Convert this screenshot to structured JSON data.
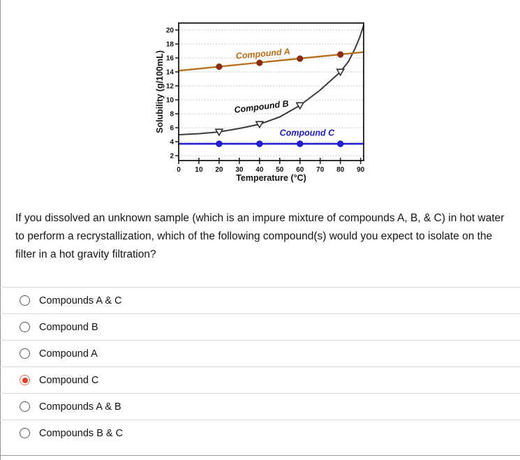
{
  "page": {
    "background": "#ffffff",
    "left_border_color": "#8f8f8f",
    "bottom_border_color": "#9a9a9a",
    "divider_color": "#d9d9d9"
  },
  "question": {
    "text": "If you dissolved an unknown sample (which is an impure mixture of compounds A, B, & C) in hot water to perform a recrystallization, which of the following compound(s) would you expect to isolate on the filter in a hot gravity filtration?"
  },
  "options": [
    {
      "label": "Compounds A & C",
      "selected": false
    },
    {
      "label": "Compound B",
      "selected": false
    },
    {
      "label": "Compound A",
      "selected": false
    },
    {
      "label": "Compound C",
      "selected": true
    },
    {
      "label": "Compounds A & B",
      "selected": false
    },
    {
      "label": "Compounds B & C",
      "selected": false
    }
  ],
  "radio_style": {
    "selected_ring": "#f0654c",
    "selected_dot": "#e73b25",
    "unselected_border": "#555555"
  },
  "chart_data": {
    "type": "line",
    "title": "",
    "xlabel": "Temperature (°C)",
    "ylabel": "Solubility (g/100mL)",
    "xlim": [
      0,
      91.5
    ],
    "ylim": [
      1.3,
      21
    ],
    "x_ticks": [
      0,
      10,
      20,
      30,
      40,
      50,
      60,
      70,
      80,
      90
    ],
    "y_ticks": [
      2,
      4,
      6,
      8,
      10,
      12,
      14,
      16,
      18,
      20
    ],
    "grid": "horizontal-dotted",
    "grid_color": "#b9b9b9",
    "axis_color": "#1a1a1a",
    "legend_position": "inline-labels",
    "series": [
      {
        "name": "Compound C",
        "color": "#1b1bd0",
        "line_width": 2.6,
        "marker": "circle",
        "marker_color": "#2020dd",
        "marker_stroke": "#0d0da8",
        "curve": [
          [
            0,
            3.7
          ],
          [
            91.5,
            3.7
          ]
        ],
        "markers": [
          [
            20,
            3.7
          ],
          [
            40,
            3.7
          ],
          [
            60,
            3.7
          ],
          [
            80,
            3.7
          ]
        ],
        "label": {
          "text": "Compound C",
          "x": 63.5,
          "y": 4.85,
          "rotation": 0,
          "color": "#1b1bd0"
        }
      },
      {
        "name": "Compound B",
        "color": "#3a3a3a",
        "line_width": 2.0,
        "marker": "triangle-down",
        "marker_color": "#ffffff",
        "marker_stroke": "#333333",
        "curve": [
          [
            0,
            5.0
          ],
          [
            10,
            5.15
          ],
          [
            20,
            5.4
          ],
          [
            30,
            5.9
          ],
          [
            40,
            6.5
          ],
          [
            50,
            7.55
          ],
          [
            60,
            9.2
          ],
          [
            70,
            11.4
          ],
          [
            80,
            14.0
          ],
          [
            84,
            15.5
          ],
          [
            87,
            17.2
          ],
          [
            89.5,
            18.9
          ],
          [
            91.5,
            20.7
          ]
        ],
        "markers": [
          [
            20,
            5.4
          ],
          [
            40,
            6.5
          ],
          [
            60,
            9.2
          ],
          [
            80,
            14.0
          ]
        ],
        "label": {
          "text": "Compound B",
          "x": 41.1,
          "y": 8.6,
          "rotation": -7,
          "color": "#111111"
        }
      },
      {
        "name": "Compound A",
        "color": "#b5701d",
        "line_width": 2.3,
        "marker": "circle",
        "marker_color": "#8e2c10",
        "marker_stroke": "#8e2c10",
        "curve": [
          [
            0,
            14.17
          ],
          [
            91.5,
            16.84
          ]
        ],
        "markers": [
          [
            20,
            14.75
          ],
          [
            40,
            15.3
          ],
          [
            60,
            15.9
          ],
          [
            80,
            16.5
          ]
        ],
        "label": {
          "text": "Compound A",
          "x": 41.8,
          "y": 16.2,
          "rotation": -5,
          "color": "#c06a10"
        }
      }
    ]
  }
}
